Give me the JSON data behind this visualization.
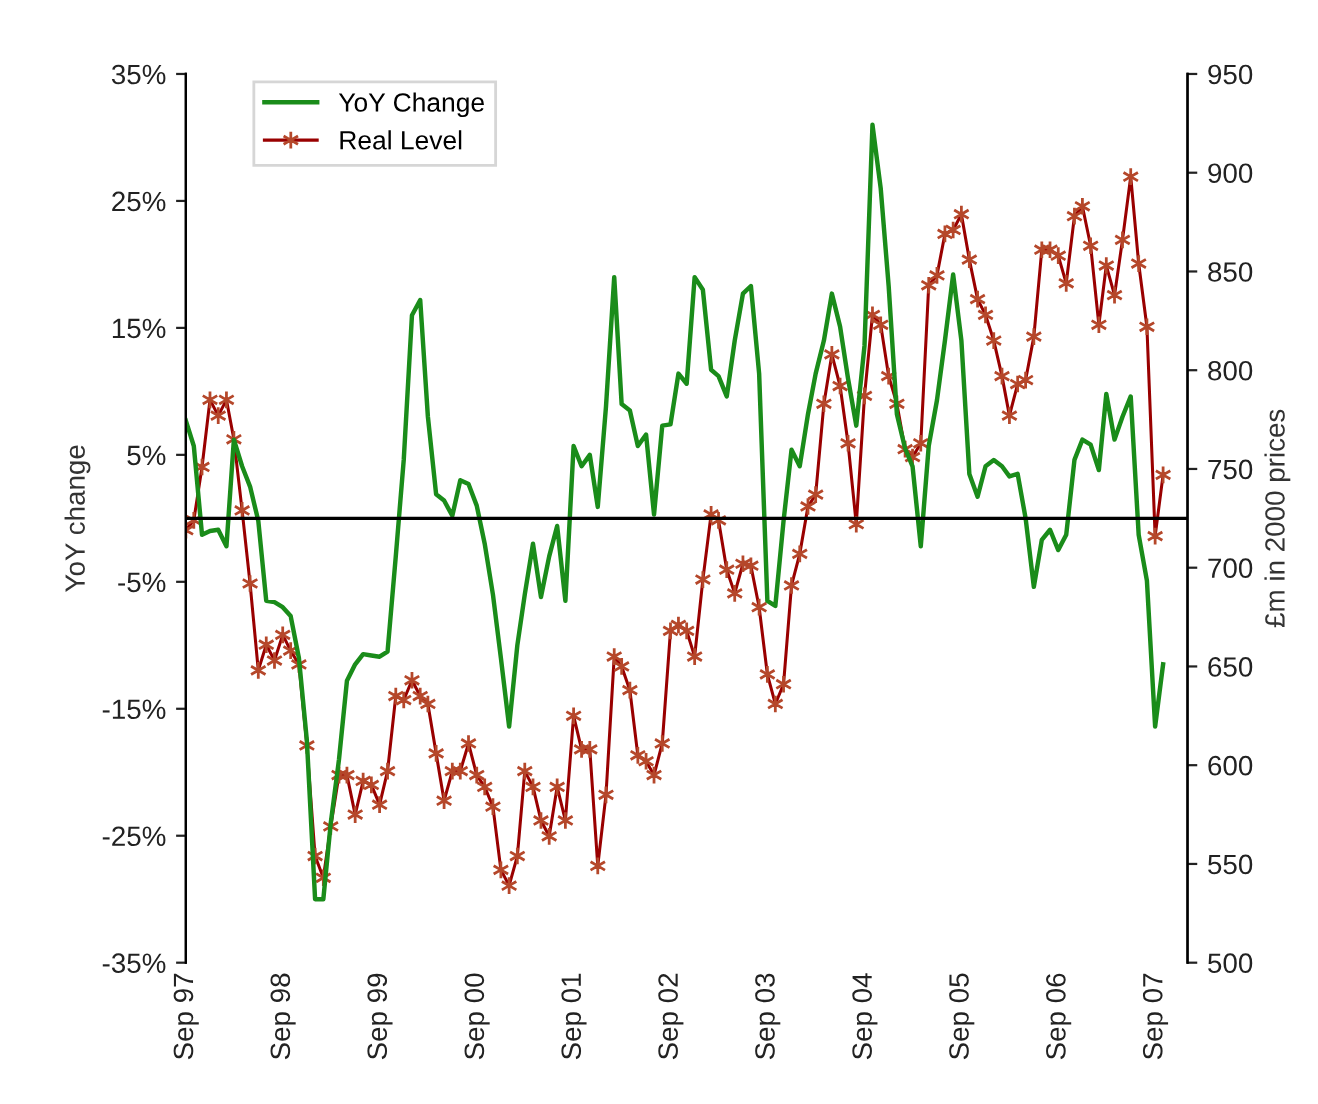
{
  "chart_data": {
    "type": "line",
    "ylabel": "YoY change",
    "y2label": "£m in 2000 prices",
    "x": [
      "1997-09",
      "1997-10",
      "1997-11",
      "1997-12",
      "1998-01",
      "1998-02",
      "1998-03",
      "1998-04",
      "1998-05",
      "1998-06",
      "1998-07",
      "1998-08",
      "1998-09",
      "1998-10",
      "1998-11",
      "1998-12",
      "1999-01",
      "1999-02",
      "1999-03",
      "1999-04",
      "1999-05",
      "1999-06",
      "1999-07",
      "1999-08",
      "1999-09",
      "1999-10",
      "1999-11",
      "1999-12",
      "2000-01",
      "2000-02",
      "2000-03",
      "2000-04",
      "2000-05",
      "2000-06",
      "2000-07",
      "2000-08",
      "2000-09",
      "2000-10",
      "2000-11",
      "2000-12",
      "2001-01",
      "2001-02",
      "2001-03",
      "2001-04",
      "2001-05",
      "2001-06",
      "2001-07",
      "2001-08",
      "2001-09",
      "2001-10",
      "2001-11",
      "2001-12",
      "2002-01",
      "2002-02",
      "2002-03",
      "2002-04",
      "2002-05",
      "2002-06",
      "2002-07",
      "2002-08",
      "2002-09",
      "2002-10",
      "2002-11",
      "2002-12",
      "2003-01",
      "2003-02",
      "2003-03",
      "2003-04",
      "2003-05",
      "2003-06",
      "2003-07",
      "2003-08",
      "2003-09",
      "2003-10",
      "2003-11",
      "2003-12",
      "2004-01",
      "2004-02",
      "2004-03",
      "2004-04",
      "2004-05",
      "2004-06",
      "2004-07",
      "2004-08",
      "2004-09",
      "2004-10",
      "2004-11",
      "2004-12",
      "2005-01",
      "2005-02",
      "2005-03",
      "2005-04",
      "2005-05",
      "2005-06",
      "2005-07",
      "2005-08",
      "2005-09",
      "2005-10",
      "2005-11",
      "2005-12",
      "2006-01",
      "2006-02",
      "2006-03",
      "2006-04",
      "2006-05",
      "2006-06",
      "2006-07",
      "2006-08",
      "2006-09",
      "2006-10",
      "2006-11",
      "2006-12",
      "2007-01",
      "2007-02",
      "2007-03",
      "2007-04",
      "2007-05",
      "2007-06",
      "2007-07",
      "2007-08",
      "2007-09",
      "2007-10"
    ],
    "series": [
      {
        "name": "YoY Change",
        "color": "#1a8c1a",
        "marker": "none",
        "values": [
          7.7,
          5.7,
          -1.3,
          -1.0,
          -0.9,
          -2.2,
          6.2,
          4.1,
          2.5,
          -0.2,
          -6.5,
          -6.6,
          -7.0,
          -7.7,
          -11,
          -17.5,
          -30,
          -30,
          -24,
          -19,
          -12.8,
          -11.5,
          -10.7,
          -10.8,
          -10.9,
          -10.5,
          -3,
          4.6,
          16,
          17.2,
          8,
          1.9,
          1.4,
          0.2,
          3,
          2.7,
          1.0,
          -2,
          -6,
          -11,
          -16.4,
          -10,
          -6,
          -2,
          -6.2,
          -3,
          -0.6,
          -6.5,
          5.7,
          4.1,
          5,
          0.9,
          8.8,
          19,
          9,
          8.5,
          5.7,
          6.6,
          0.3,
          7.3,
          7.4,
          11.4,
          10.6,
          19,
          18,
          11.7,
          11.2,
          9.6,
          14,
          17.7,
          18.3,
          11.4,
          -6.5,
          -6.9,
          -0.2,
          5.4,
          4.1,
          8.2,
          11.4,
          14,
          17.7,
          15.1,
          11,
          7.3,
          13.6,
          31,
          26,
          18.3,
          8.2,
          5.5,
          4.1,
          -2.2,
          5.7,
          9.3,
          14,
          19.2,
          14,
          3.5,
          1.7,
          4.1,
          4.6,
          4.1,
          3.3,
          3.5,
          0,
          -5.4,
          -1.7,
          -0.9,
          -2.5,
          -1.3,
          4.6,
          6.2,
          5.8,
          3.8,
          9.8,
          6.2,
          8,
          9.6,
          -1.3,
          -4.9,
          -16.4,
          -11.5
        ]
      },
      {
        "name": "Real Level",
        "color": "#990000",
        "marker": "cross",
        "axis": "y2",
        "values": [
          719,
          724,
          751,
          785,
          777,
          785,
          765,
          729,
          692,
          648,
          661,
          653,
          666,
          658,
          651,
          610,
          554,
          543,
          569,
          595,
          595,
          575,
          592,
          590,
          580,
          597,
          635,
          633,
          643,
          635,
          631,
          606,
          582,
          597,
          597,
          611,
          595,
          589,
          579,
          547,
          539,
          554,
          597,
          589,
          572,
          564,
          589,
          572,
          625,
          608,
          608,
          549,
          585,
          655,
          650,
          638,
          605,
          602,
          595,
          611,
          668,
          671,
          668,
          655,
          694,
          727,
          724,
          699,
          687,
          702,
          701,
          680,
          646,
          631,
          641,
          691,
          707,
          731,
          737,
          783,
          808,
          792,
          763,
          722,
          787,
          828,
          823,
          797,
          783,
          760,
          756,
          763,
          843,
          848,
          869,
          871,
          879,
          856,
          836,
          828,
          815,
          797,
          777,
          793,
          795,
          817,
          861,
          861,
          858,
          844,
          878,
          883,
          863,
          823,
          853,
          838,
          866,
          898,
          854,
          822,
          716,
          747
        ]
      }
    ],
    "xlim": [
      "1997-09",
      "2008-01"
    ],
    "xticks": [
      {
        "value": "1997-09",
        "label": "Sep 97"
      },
      {
        "value": "1998-09",
        "label": "Sep 98"
      },
      {
        "value": "1999-09",
        "label": "Sep 99"
      },
      {
        "value": "2000-09",
        "label": "Sep 00"
      },
      {
        "value": "2001-09",
        "label": "Sep 01"
      },
      {
        "value": "2002-09",
        "label": "Sep 02"
      },
      {
        "value": "2003-09",
        "label": "Sep 03"
      },
      {
        "value": "2004-09",
        "label": "Sep 04"
      },
      {
        "value": "2005-09",
        "label": "Sep 05"
      },
      {
        "value": "2006-09",
        "label": "Sep 06"
      },
      {
        "value": "2007-09",
        "label": "Sep 07"
      }
    ],
    "ylim": [
      -35,
      35
    ],
    "yticks": [
      {
        "value": -35,
        "label": "-35%"
      },
      {
        "value": -25,
        "label": "-25%"
      },
      {
        "value": -15,
        "label": "-15%"
      },
      {
        "value": -5,
        "label": "-5%"
      },
      {
        "value": 5,
        "label": "5%"
      },
      {
        "value": 15,
        "label": "15%"
      },
      {
        "value": 25,
        "label": "25%"
      },
      {
        "value": 35,
        "label": "35%"
      }
    ],
    "y2lim": [
      500,
      950
    ],
    "y2ticks": [
      500,
      550,
      600,
      650,
      700,
      750,
      800,
      850,
      900,
      950
    ],
    "ref_lines": [
      {
        "axis": "y",
        "value": 0,
        "color": "#000000"
      }
    ],
    "grid": false,
    "legend": "top left",
    "line_style": "solid"
  }
}
